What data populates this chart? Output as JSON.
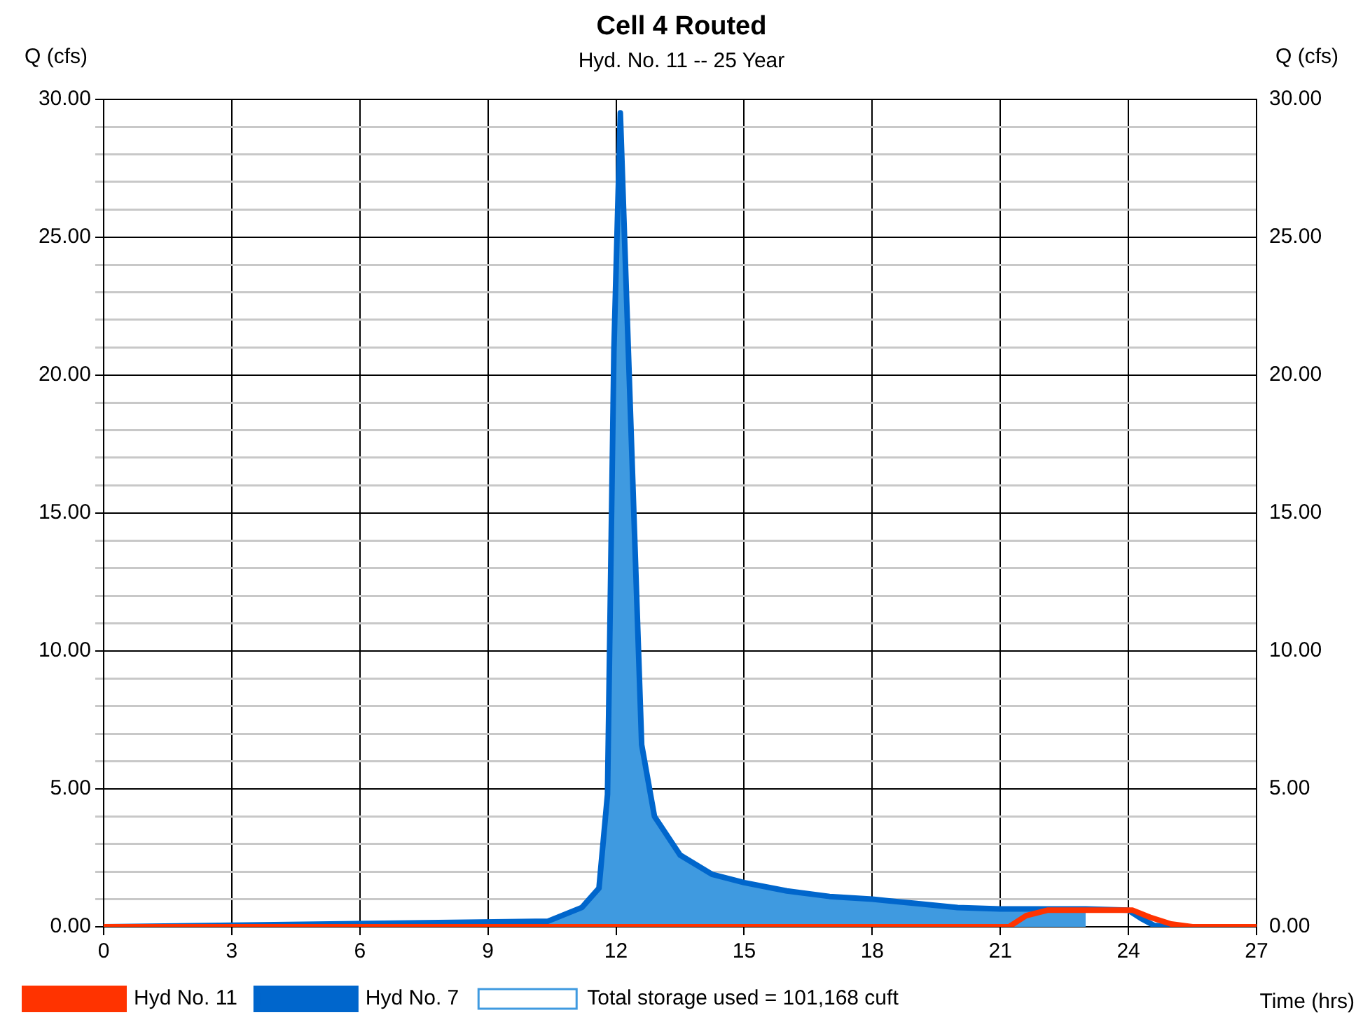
{
  "chart_data": {
    "type": "line",
    "title": "Cell 4 Routed",
    "subtitle": "Hyd. No. 11 -- 25 Year",
    "xlabel": "Time (hrs)",
    "ylabel": "Q (cfs)",
    "y2label": "Q (cfs)",
    "xlim": [
      0,
      27
    ],
    "xticks": [
      0,
      3,
      6,
      9,
      12,
      15,
      18,
      21,
      24,
      27
    ],
    "ylim": [
      0,
      30
    ],
    "yticks": [
      {
        "value": 0,
        "label": "0.00"
      },
      {
        "value": 1,
        "label": null
      },
      {
        "value": 2,
        "label": null
      },
      {
        "value": 3,
        "label": null
      },
      {
        "value": 4,
        "label": null
      },
      {
        "value": 5,
        "label": "5.00"
      },
      {
        "value": 6,
        "label": null
      },
      {
        "value": 7,
        "label": null
      },
      {
        "value": 8,
        "label": null
      },
      {
        "value": 9,
        "label": null
      },
      {
        "value": 10,
        "label": "10.00"
      },
      {
        "value": 11,
        "label": null
      },
      {
        "value": 12,
        "label": null
      },
      {
        "value": 13,
        "label": null
      },
      {
        "value": 14,
        "label": null
      },
      {
        "value": 15,
        "label": "15.00"
      },
      {
        "value": 16,
        "label": null
      },
      {
        "value": 17,
        "label": null
      },
      {
        "value": 18,
        "label": null
      },
      {
        "value": 19,
        "label": null
      },
      {
        "value": 20,
        "label": "20.00"
      },
      {
        "value": 21,
        "label": null
      },
      {
        "value": 22,
        "label": null
      },
      {
        "value": 23,
        "label": null
      },
      {
        "value": 24,
        "label": null
      },
      {
        "value": 25,
        "label": "25.00"
      },
      {
        "value": 26,
        "label": null
      },
      {
        "value": 27,
        "label": null
      },
      {
        "value": 28,
        "label": null
      },
      {
        "value": 29,
        "label": null
      },
      {
        "value": 30,
        "label": "30.00"
      }
    ],
    "y2lim": [
      0,
      30
    ],
    "y2ticks": [
      {
        "value": 0,
        "label": "0.00"
      },
      {
        "value": 5,
        "label": "5.00"
      },
      {
        "value": 10,
        "label": "10.00"
      },
      {
        "value": 15,
        "label": "15.00"
      },
      {
        "value": 20,
        "label": "20.00"
      },
      {
        "value": 25,
        "label": "25.00"
      },
      {
        "value": 30,
        "label": "30.00"
      }
    ],
    "grid": true,
    "legend": "bottom",
    "marker": "none",
    "series": [
      {
        "name": "Hyd No. 11",
        "color": "#ff3300",
        "x": [
          0,
          21.2,
          21.6,
          22.1,
          24.1,
          24.5,
          25,
          25.5,
          27
        ],
        "values": [
          0,
          0,
          0.4,
          0.6,
          0.6,
          0.35,
          0.1,
          0,
          0
        ]
      },
      {
        "name": "Hyd No. 7",
        "color": "#0066cc",
        "x": [
          0,
          10.4,
          11.2,
          11.6,
          11.8,
          11.95,
          12.1,
          12.6,
          12.9,
          13.5,
          14.25,
          15,
          16,
          17,
          18,
          19,
          20,
          21,
          23,
          24,
          24.3,
          24.6,
          25,
          27
        ],
        "values": [
          0,
          0.2,
          0.7,
          1.4,
          4.8,
          20.9,
          29.5,
          6.6,
          4,
          2.6,
          1.9,
          1.6,
          1.3,
          1.1,
          1,
          0.85,
          0.7,
          0.65,
          0.65,
          0.6,
          0.3,
          0.05,
          0,
          0
        ]
      },
      {
        "name": "Total storage used = 101,168 cuft",
        "type": "area",
        "color": "#3f9ae0",
        "x": [
          0,
          10.4,
          11.2,
          11.6,
          11.8,
          11.95,
          12.1,
          12.6,
          12.9,
          13.5,
          14.25,
          15,
          16,
          17,
          18,
          19,
          20,
          21,
          21.6,
          22.1,
          23
        ],
        "values": [
          0,
          0.2,
          0.7,
          1.4,
          4.8,
          20.9,
          29.5,
          6.6,
          4,
          2.6,
          1.9,
          1.6,
          1.3,
          1.1,
          1,
          0.85,
          0.7,
          0.65,
          0.65,
          0.65,
          0.65
        ]
      }
    ]
  }
}
